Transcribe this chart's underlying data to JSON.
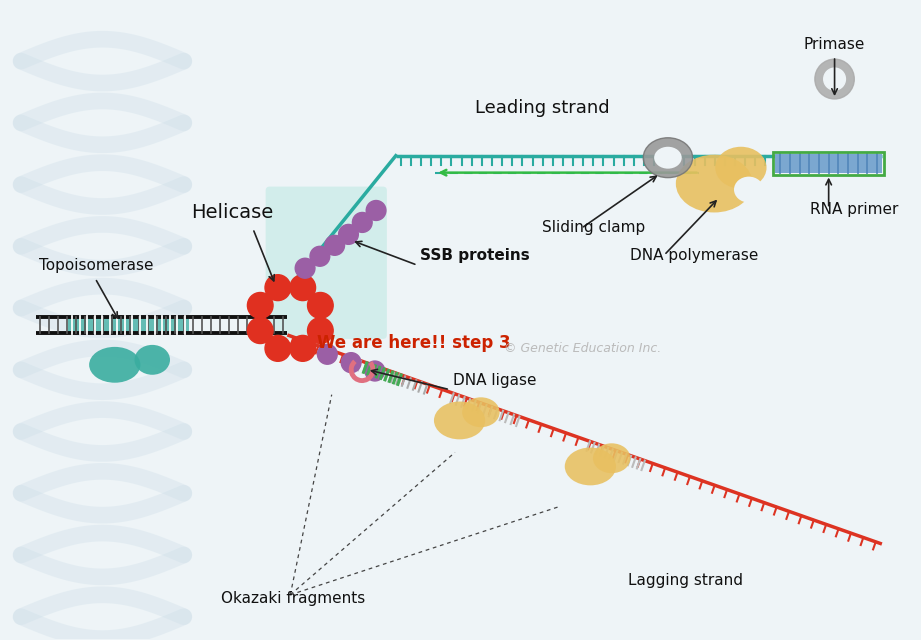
{
  "bg_color": "#eef4f7",
  "watermark": "© Genetic Education Inc.",
  "labels": {
    "topoisomerase": "Topoisomerase",
    "helicase": "Helicase",
    "ssb_proteins": "SSB proteins",
    "we_are_here": "We are here!! step 3",
    "dna_ligase": "DNA ligase",
    "okazaki": "Okazaki fragments",
    "lagging_strand": "Lagging strand",
    "leading_strand": "Leading strand",
    "sliding_clamp": "Sliding clamp",
    "dna_polymerase": "DNA polymerase",
    "rna_primer": "RNA primer",
    "primase": "Primase"
  },
  "colors": {
    "helicase_red": "#e03020",
    "ssb_purple": "#9b5fa5",
    "topo_teal": "#3aada0",
    "dna_poly_yellow": "#e8c060",
    "sliding_clamp_gray": "#999999",
    "rna_primer_blue": "#7ba7d0",
    "green_strand": "#44aa55",
    "dna_ligase_pink": "#e07080",
    "we_are_here_red": "#cc2200",
    "leading_teal": "#2aaba0",
    "lagging_red": "#dd3322",
    "black_strand": "#1a1a1a",
    "white_bg": "#eef4f7",
    "ssb_box_teal": "#b8e8e0"
  }
}
